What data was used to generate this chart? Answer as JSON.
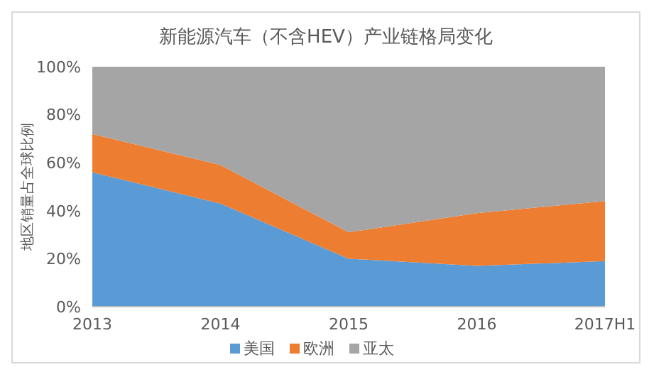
{
  "chart_data": {
    "type": "area",
    "title": "新能源汽车（不含HEV）产业链格局变化",
    "ylabel": "地区销量占全球比例",
    "stacked": true,
    "categories": [
      "2013",
      "2014",
      "2015",
      "2016",
      "2017H1"
    ],
    "series": [
      {
        "name": "美国",
        "color": "#5b9bd5",
        "values": [
          56,
          43,
          20,
          17,
          19
        ]
      },
      {
        "name": "欧洲",
        "color": "#ed7d31",
        "values": [
          16,
          16,
          11,
          22,
          25
        ]
      },
      {
        "name": "亚太",
        "color": "#a5a5a5",
        "values": [
          28,
          41,
          69,
          61,
          56
        ]
      }
    ],
    "ylim": [
      0,
      100
    ],
    "yticks": [
      {
        "value": 0,
        "label": "0%"
      },
      {
        "value": 20,
        "label": "20%"
      },
      {
        "value": 40,
        "label": "40%"
      },
      {
        "value": 60,
        "label": "60%"
      },
      {
        "value": 80,
        "label": "80%"
      },
      {
        "value": 100,
        "label": "100%"
      }
    ],
    "grid": false,
    "legend": "bottom"
  }
}
